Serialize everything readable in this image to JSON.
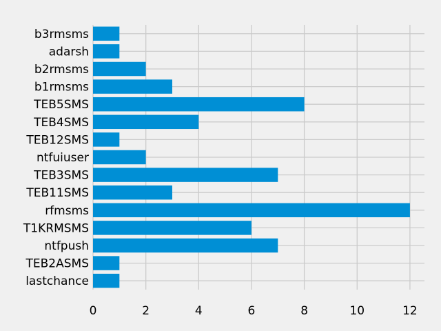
{
  "chart_data": {
    "type": "bar",
    "orientation": "horizontal",
    "title": "",
    "xlabel": "",
    "ylabel": "",
    "categories": [
      "lastchance",
      "TEB2ASMS",
      "ntfpush",
      "T1KRMSMS",
      "rfmsms",
      "TEB11SMS",
      "TEB3SMS",
      "ntfuiuser",
      "TEB12SMS",
      "TEB4SMS",
      "TEB5SMS",
      "b1rmsms",
      "b2rmsms",
      "adarsh",
      "b3rmsms"
    ],
    "values": [
      1,
      1,
      7,
      6,
      12,
      3,
      7,
      2,
      1,
      4,
      8,
      3,
      2,
      1,
      1
    ],
    "xlim": [
      0,
      12.55
    ],
    "xticks": [
      "0",
      "2",
      "4",
      "6",
      "8",
      "10",
      "12"
    ],
    "grid": true,
    "colors": {
      "bar": "#008fd5",
      "background": "#f0f0f0",
      "grid": "#cbcbcb"
    }
  }
}
